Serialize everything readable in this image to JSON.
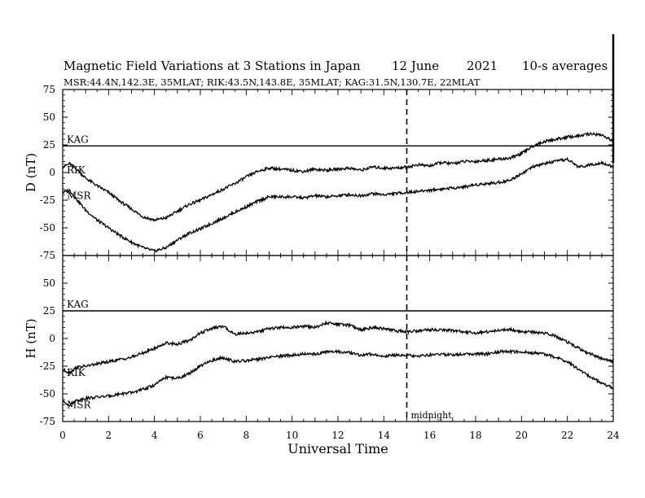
{
  "header": {
    "title": "Magnetic Field Variations at 3 Stations in Japan",
    "date": "12 June",
    "year": "2021",
    "averaging": "10-s averages",
    "stations_line": "MSR:44.4N,142.3E, 35MLAT;  RIK:43.5N,143.8E, 35MLAT;  KAG:31.5N,130.7E, 22MLAT"
  },
  "chart_data": {
    "type": "line",
    "xlabel": "Universal Time",
    "xlim": [
      0,
      24
    ],
    "xticks": [
      "0",
      "2",
      "4",
      "6",
      "8",
      "10",
      "12",
      "14",
      "16",
      "18",
      "20",
      "22",
      "24"
    ],
    "annotations": {
      "midnight_x": 15,
      "midnight_label": "midnight"
    },
    "panels": [
      {
        "ylabel": "D (nT)",
        "ylim": [
          -75,
          75
        ],
        "yticks": [
          "75",
          "50",
          "25",
          "0",
          "-25",
          "-50",
          "-75"
        ],
        "series": [
          {
            "name": "KAG",
            "x": [
              0,
              24
            ],
            "y": [
              24,
              24
            ]
          },
          {
            "name": "RIK",
            "x": [
              0,
              0.3,
              0.6,
              1,
              1.5,
              2,
              2.5,
              3,
              3.5,
              4,
              4.5,
              5,
              5.5,
              6,
              6.5,
              7,
              7.5,
              8,
              8.5,
              9,
              9.5,
              10,
              10.5,
              11,
              11.5,
              12,
              12.5,
              13,
              13.5,
              14,
              14.5,
              15,
              15.5,
              16,
              16.5,
              17,
              17.5,
              18,
              18.5,
              19,
              19.5,
              20,
              20.5,
              21,
              21.5,
              22,
              22.5,
              23,
              23.5,
              24
            ],
            "y": [
              5,
              8,
              3,
              -5,
              -12,
              -18,
              -26,
              -33,
              -40,
              -43,
              -41,
              -35,
              -29,
              -25,
              -20,
              -15,
              -10,
              -4,
              1,
              4,
              3,
              2,
              1,
              3,
              2,
              3,
              4,
              2,
              5,
              4,
              4,
              5,
              7,
              6,
              9,
              8,
              10,
              10,
              11,
              12,
              13,
              17,
              24,
              28,
              30,
              32,
              33,
              35,
              34,
              28
            ]
          },
          {
            "name": "MSR",
            "x": [
              0,
              0.3,
              0.6,
              1,
              1.5,
              2,
              2.5,
              3,
              3.5,
              4,
              4.5,
              5,
              5.5,
              6,
              6.5,
              7,
              7.5,
              8,
              8.5,
              9,
              9.5,
              10,
              10.5,
              11,
              11.5,
              12,
              12.5,
              13,
              13.5,
              14,
              14.5,
              15,
              15.5,
              16,
              16.5,
              17,
              17.5,
              18,
              18.5,
              19,
              19.5,
              20,
              20.5,
              21,
              21.5,
              22,
              22.5,
              23,
              23.5,
              24
            ],
            "y": [
              -18,
              -16,
              -24,
              -34,
              -43,
              -50,
              -57,
              -63,
              -68,
              -71,
              -68,
              -61,
              -55,
              -51,
              -46,
              -41,
              -36,
              -31,
              -26,
              -22,
              -22,
              -22,
              -23,
              -21,
              -22,
              -21,
              -20,
              -21,
              -19,
              -20,
              -19,
              -18,
              -17,
              -16,
              -15,
              -14,
              -13,
              -11,
              -10,
              -9,
              -7,
              -1,
              5,
              8,
              10,
              12,
              5,
              7,
              9,
              5
            ]
          }
        ]
      },
      {
        "ylabel": "H (nT)",
        "ylim": [
          -75,
          75
        ],
        "yticks": [
          "75",
          "50",
          "25",
          "0",
          "-25",
          "-50",
          "-75"
        ],
        "series": [
          {
            "name": "KAG",
            "x": [
              0,
              24
            ],
            "y": [
              25,
              25
            ]
          },
          {
            "name": "RIK",
            "x": [
              0,
              0.3,
              0.6,
              1,
              1.5,
              2,
              2.5,
              3,
              3.5,
              4,
              4.5,
              5,
              5.5,
              6,
              6.5,
              7,
              7.5,
              8,
              8.5,
              9,
              9.5,
              10,
              10.5,
              11,
              11.5,
              12,
              12.5,
              13,
              13.5,
              14,
              14.5,
              15,
              15.5,
              16,
              16.5,
              17,
              17.5,
              18,
              18.5,
              19,
              19.5,
              20,
              20.5,
              21,
              21.5,
              22,
              22.5,
              23,
              23.5,
              24
            ],
            "y": [
              -28,
              -31,
              -26,
              -25,
              -23,
              -21,
              -19,
              -17,
              -13,
              -9,
              -4,
              -5,
              -2,
              5,
              9,
              11,
              4,
              5,
              6,
              9,
              10,
              10,
              11,
              10,
              14,
              13,
              12,
              8,
              10,
              9,
              7,
              6,
              7,
              8,
              8,
              7,
              6,
              5,
              6,
              7,
              8,
              6,
              6,
              5,
              2,
              -3,
              -9,
              -14,
              -18,
              -21
            ]
          },
          {
            "name": "MSR",
            "x": [
              0,
              0.3,
              0.6,
              1,
              1.5,
              2,
              2.5,
              3,
              3.5,
              4,
              4.5,
              5,
              5.5,
              6,
              6.5,
              7,
              7.5,
              8,
              8.5,
              9,
              9.5,
              10,
              10.5,
              11,
              11.5,
              12,
              12.5,
              13,
              13.5,
              14,
              14.5,
              15,
              15.5,
              16,
              16.5,
              17,
              17.5,
              18,
              18.5,
              19,
              19.5,
              20,
              20.5,
              21,
              21.5,
              22,
              22.5,
              23,
              23.5,
              24
            ],
            "y": [
              -57,
              -60,
              -56,
              -54,
              -53,
              -52,
              -50,
              -49,
              -46,
              -42,
              -35,
              -36,
              -32,
              -25,
              -20,
              -17,
              -21,
              -20,
              -19,
              -17,
              -16,
              -15,
              -14,
              -14,
              -12,
              -12,
              -13,
              -15,
              -14,
              -16,
              -15,
              -15,
              -16,
              -15,
              -14,
              -15,
              -14,
              -14,
              -14,
              -12,
              -12,
              -12,
              -13,
              -14,
              -17,
              -21,
              -28,
              -35,
              -40,
              -45
            ]
          }
        ]
      }
    ]
  }
}
